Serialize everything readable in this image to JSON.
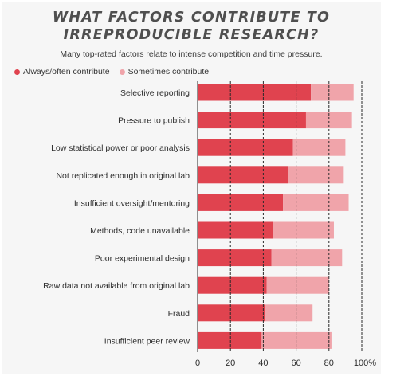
{
  "chart_data": {
    "type": "bar",
    "orientation": "horizontal",
    "stacked": true,
    "title": "WHAT FACTORS CONTRIBUTE TO\nIRREPRODUCIBLE RESEARCH?",
    "subtitle": "Many top-rated factors relate to intense competition and time pressure.",
    "categories": [
      "Selective reporting",
      "Pressure to publish",
      "Low statistical power or poor analysis",
      "Not replicated enough in original lab",
      "Insufficient oversight/mentoring",
      "Methods, code unavailable",
      "Poor experimental design",
      "Raw data not available from original lab",
      "Fraud",
      "Insufficient peer review"
    ],
    "series": [
      {
        "name": "Always/often contribute",
        "color": "#e0434f",
        "values": [
          69,
          66,
          58,
          55,
          52,
          46,
          45,
          42,
          41,
          39
        ]
      },
      {
        "name": "Sometimes contribute",
        "color": "#f0a4aa",
        "values": [
          26,
          28,
          32,
          34,
          40,
          37,
          43,
          38,
          29,
          43
        ]
      }
    ],
    "xlim": [
      0,
      100
    ],
    "xticks": [
      "0",
      "20",
      "40",
      "60",
      "80",
      "100%"
    ],
    "gridlines": [
      20,
      40,
      60,
      80,
      100
    ],
    "legend_position": "top-left",
    "grid": true
  }
}
